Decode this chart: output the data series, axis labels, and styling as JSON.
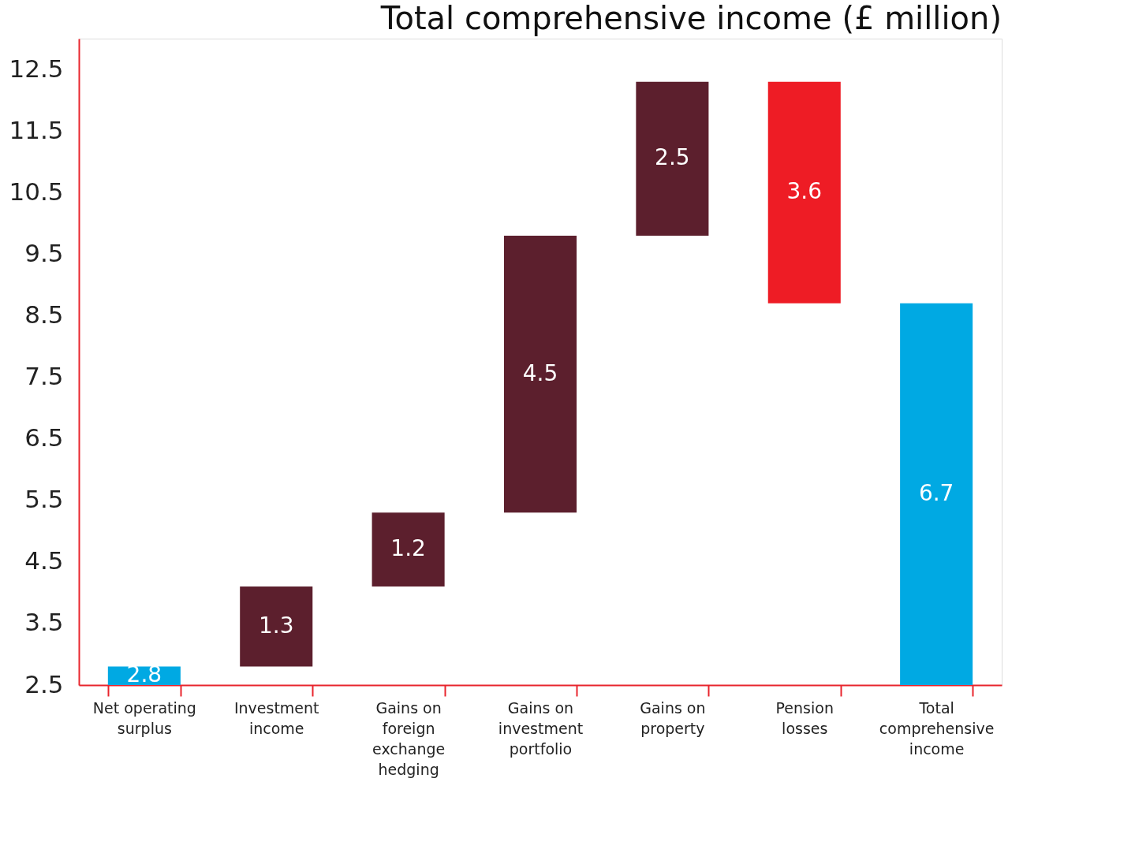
{
  "chart_data": {
    "type": "bar",
    "title": "Total comprehensive income (£ million)",
    "categories": [
      "Net operating surplus",
      "Investment income",
      "Gains on foreign exchange hedging",
      "Gains on investment portfolio",
      "Gains on property",
      "Pension losses",
      "Total comprehensive income"
    ],
    "values": [
      2.8,
      1.3,
      1.2,
      4.5,
      2.5,
      3.6,
      6.7
    ],
    "base": [
      0,
      2.8,
      4.1,
      5.3,
      9.8,
      8.7,
      2.0
    ],
    "colors": [
      "#00a9e3",
      "#5c1f2d",
      "#5c1f2d",
      "#5c1f2d",
      "#5c1f2d",
      "#ee1c25",
      "#00a9e3"
    ],
    "ylim": [
      2.5,
      13.0
    ],
    "yticks": [
      2.5,
      3.5,
      4.5,
      5.5,
      6.5,
      7.5,
      8.5,
      9.5,
      10.5,
      11.5,
      12.5
    ],
    "data_labels": true,
    "grid": false
  }
}
